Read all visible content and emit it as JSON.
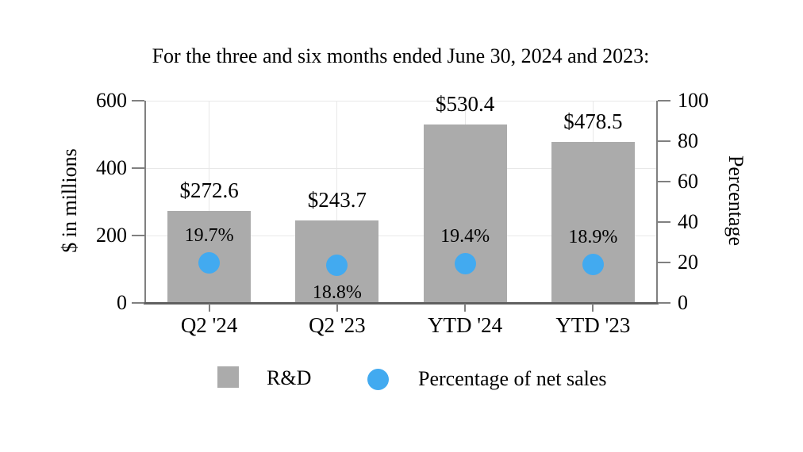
{
  "title": "For the three and six months ended June 30, 2024 and 2023:",
  "chart_data": {
    "type": "bar",
    "categories": [
      "Q2 '24",
      "Q2 '23",
      "YTD '24",
      "YTD '23"
    ],
    "series": [
      {
        "name": "R&D",
        "kind": "bar",
        "axis": "left",
        "color": "#ABABAB",
        "values": [
          272.6,
          243.7,
          530.4,
          478.5
        ],
        "labels": [
          "$272.6",
          "$243.7",
          "$530.4",
          "$478.5"
        ]
      },
      {
        "name": "Percentage of net sales",
        "kind": "point",
        "axis": "right",
        "color": "#42AAF0",
        "values": [
          19.7,
          18.8,
          19.4,
          18.9
        ],
        "labels": [
          "19.7%",
          "18.8%",
          "19.4%",
          "18.9%"
        ],
        "label_placements": [
          "above",
          "below",
          "above",
          "above"
        ]
      }
    ],
    "left_axis": {
      "title": "$ in millions",
      "range": [
        0,
        600
      ],
      "ticks": [
        0,
        200,
        400,
        600
      ]
    },
    "right_axis": {
      "title": "Percentage",
      "range": [
        0,
        100
      ],
      "ticks": [
        0,
        20,
        40,
        60,
        80,
        100
      ]
    },
    "grid": {
      "horizontal": true,
      "vertical": true
    },
    "legend_position": "bottom"
  },
  "legend": {
    "items": [
      {
        "label": "R&D",
        "swatch": "square",
        "color": "#ABABAB"
      },
      {
        "label": "Percentage of net sales",
        "swatch": "circle",
        "color": "#42AAF0"
      }
    ]
  },
  "colors": {
    "bar": "#ABABAB",
    "dot": "#42AAF0",
    "gridline": "#E8E8E8",
    "axis_line": "#808080",
    "bottom_axis_line": "#606060",
    "text": "#000000",
    "background": "#FFFFFF"
  }
}
